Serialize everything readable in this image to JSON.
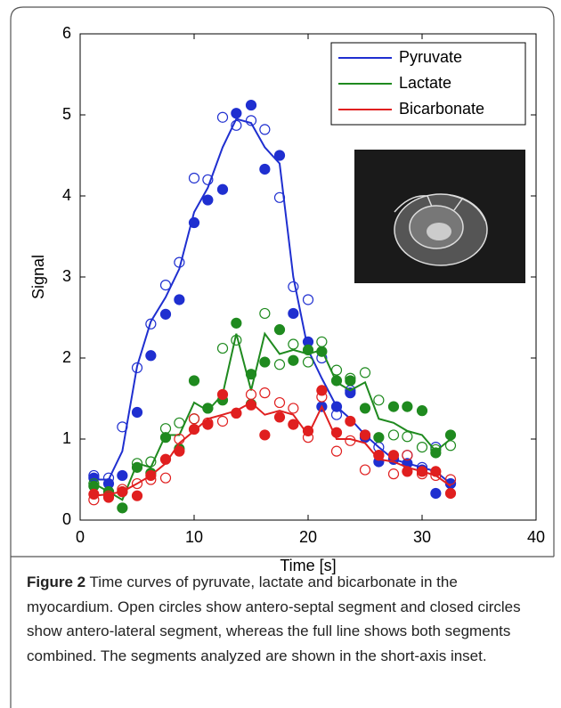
{
  "chart_data": {
    "type": "line",
    "xlabel": "Time [s]",
    "ylabel": "Signal",
    "x": [
      1.2,
      2.5,
      3.7,
      5.0,
      6.2,
      7.5,
      8.7,
      10.0,
      11.2,
      12.5,
      13.7,
      15.0,
      16.2,
      17.5,
      18.7,
      20.0,
      21.2,
      22.5,
      23.7,
      25.0,
      26.2,
      27.5,
      28.7,
      30.0,
      31.2,
      32.5
    ],
    "xlim": [
      0,
      40
    ],
    "xticks": [
      0,
      10,
      20,
      30,
      40
    ],
    "ylim": [
      0,
      6
    ],
    "yticks": [
      0,
      1,
      2,
      3,
      4,
      5,
      6
    ],
    "legend": "upper right",
    "series": [
      {
        "name": "Pyruvate",
        "color": "#1f2fd0",
        "values": [
          0.5,
          0.5,
          0.85,
          1.9,
          2.45,
          2.75,
          3.1,
          3.8,
          4.1,
          4.6,
          4.95,
          4.9,
          4.6,
          4.4,
          3.0,
          2.1,
          1.75,
          1.4,
          1.25,
          1.05,
          0.9,
          0.75,
          0.7,
          0.65,
          0.6,
          0.45
        ],
        "open": [
          0.55,
          0.52,
          1.15,
          1.88,
          2.42,
          2.9,
          3.18,
          4.22,
          4.2,
          4.97,
          4.87,
          4.93,
          4.82,
          3.98,
          2.88,
          2.72,
          2.0,
          1.3,
          1.6,
          1.05,
          0.9,
          0.75,
          0.8,
          0.65,
          0.9,
          0.45
        ],
        "closed": [
          0.52,
          0.45,
          0.55,
          1.33,
          2.03,
          2.54,
          2.72,
          3.67,
          3.95,
          4.08,
          5.02,
          5.12,
          4.33,
          4.5,
          2.55,
          2.2,
          1.4,
          1.4,
          1.57,
          1.02,
          0.72,
          0.75,
          0.7,
          0.62,
          0.33,
          0.45
        ]
      },
      {
        "name": "Lactate",
        "color": "#1f8a1f",
        "values": [
          0.45,
          0.35,
          0.25,
          0.7,
          0.65,
          1.05,
          1.05,
          1.45,
          1.35,
          1.55,
          2.3,
          1.6,
          2.3,
          2.05,
          2.1,
          2.05,
          2.1,
          1.7,
          1.6,
          1.7,
          1.25,
          1.2,
          1.1,
          1.05,
          0.85,
          1.0
        ],
        "open": [
          0.45,
          0.35,
          0.35,
          0.7,
          0.72,
          1.13,
          1.2,
          1.25,
          1.38,
          2.12,
          2.22,
          1.43,
          2.55,
          1.92,
          2.17,
          1.95,
          2.2,
          1.85,
          1.75,
          1.82,
          1.48,
          1.05,
          1.03,
          0.9,
          0.87,
          0.92
        ],
        "closed": [
          0.42,
          0.35,
          0.15,
          0.65,
          0.58,
          1.02,
          0.88,
          1.72,
          1.38,
          1.48,
          2.43,
          1.8,
          1.95,
          2.35,
          1.97,
          2.1,
          2.08,
          1.72,
          1.72,
          1.38,
          1.02,
          1.4,
          1.4,
          1.35,
          0.83,
          1.05
        ]
      },
      {
        "name": "Bicarbonate",
        "color": "#e01f1f",
        "values": [
          0.3,
          0.32,
          0.35,
          0.45,
          0.55,
          0.7,
          0.95,
          1.1,
          1.25,
          1.3,
          1.35,
          1.45,
          1.3,
          1.35,
          1.3,
          1.05,
          1.4,
          1.0,
          1.0,
          0.95,
          0.75,
          0.72,
          0.65,
          0.6,
          0.55,
          0.42
        ],
        "open": [
          0.25,
          0.3,
          0.38,
          0.45,
          0.5,
          0.52,
          1.0,
          1.25,
          1.2,
          1.22,
          1.32,
          1.55,
          1.57,
          1.45,
          1.38,
          1.02,
          1.52,
          0.85,
          0.98,
          0.62,
          0.8,
          0.57,
          0.8,
          0.57,
          0.55,
          0.5
        ],
        "closed": [
          0.32,
          0.28,
          0.35,
          0.3,
          0.55,
          0.75,
          0.85,
          1.12,
          1.18,
          1.55,
          1.32,
          1.42,
          1.05,
          1.27,
          1.18,
          1.1,
          1.6,
          1.08,
          1.22,
          1.05,
          0.8,
          0.8,
          0.6,
          0.6,
          0.6,
          0.33
        ]
      }
    ]
  },
  "caption": {
    "label": "Figure 2",
    "text": "Time curves of pyruvate, lactate and bicarbonate in the myocardium. Open circles show antero-septal segment and closed circles show antero-lateral segment, whereas the full line shows both segments combined. The segments analyzed are shown in the short-axis inset."
  }
}
